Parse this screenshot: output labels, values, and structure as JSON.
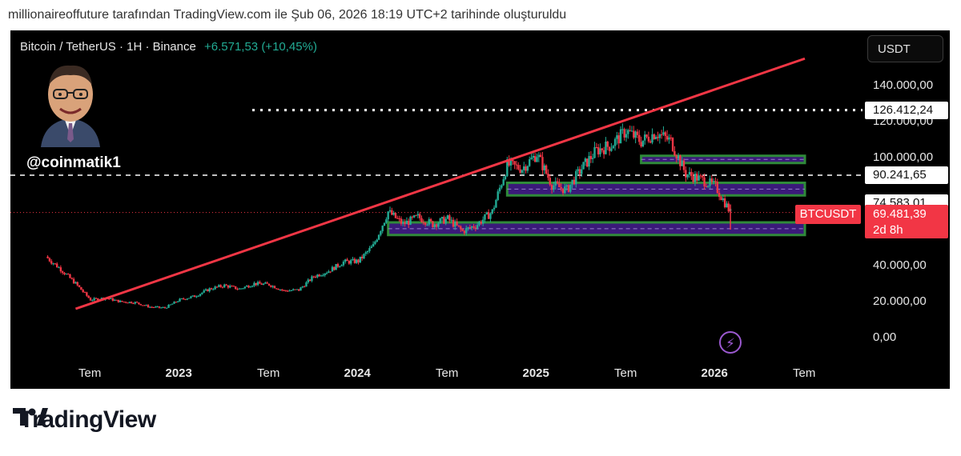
{
  "top_note": "millionaireoffuture tarafından TradingView.com ile Şub 06, 2026 18:19 UTC+2 tarihinde oluşturuldu",
  "header": {
    "symbol": "Bitcoin / TetherUS · 1H · Binance",
    "change": "+6.571,53 (+10,45%)"
  },
  "currency_button": "USDT",
  "handle": "@coinmatik1",
  "brand": {
    "logo_text": "TradingView"
  },
  "colors": {
    "up": "#22ab94",
    "down": "#f23645",
    "trend": "#f23645",
    "zone_fill": "#3a1a7a",
    "zone_border": "#2f8a3a"
  },
  "chart_data": {
    "type": "candlestick",
    "ylim": [
      0,
      160000
    ],
    "y_ticks": [
      {
        "label": "140.000,00",
        "value": 140000
      },
      {
        "label": "120.000,00",
        "value": 120000
      },
      {
        "label": "100.000,00",
        "value": 100000
      },
      {
        "label": "40.000,00",
        "value": 40000
      },
      {
        "label": "20.000,00",
        "value": 20000
      },
      {
        "label": "0,00",
        "value": 0
      }
    ],
    "x_ticks": [
      {
        "label": "Tem",
        "date": "2022-07",
        "year": false
      },
      {
        "label": "2023",
        "date": "2023-01",
        "year": true
      },
      {
        "label": "Tem",
        "date": "2023-07",
        "year": false
      },
      {
        "label": "2024",
        "date": "2024-01",
        "year": true
      },
      {
        "label": "Tem",
        "date": "2024-07",
        "year": false
      },
      {
        "label": "2025",
        "date": "2025-01",
        "year": true
      },
      {
        "label": "Tem",
        "date": "2025-07",
        "year": false
      },
      {
        "label": "2026",
        "date": "2026-01",
        "year": true
      },
      {
        "label": "Tem",
        "date": "2026-07",
        "year": false
      }
    ],
    "price_levels": [
      {
        "label": "126.412,24",
        "value": 126412,
        "style": "dotted"
      },
      {
        "label": "90.241,65",
        "value": 90241,
        "style": "dashed"
      },
      {
        "label": "74.583,01",
        "value": 74583,
        "style": "none"
      }
    ],
    "current_price": {
      "symbol": "BTCUSDT",
      "label": "69.481,39",
      "value": 69481,
      "countdown": "2d 8h"
    },
    "trend_line": {
      "from": {
        "date": "2022-06",
        "value": 16000
      },
      "to": {
        "date": "2026-07",
        "value": 155000
      }
    },
    "zones": [
      {
        "from": "2025-08",
        "to": "2026-07",
        "low": 97000,
        "high": 101000
      },
      {
        "from": "2024-11",
        "to": "2026-07",
        "low": 79000,
        "high": 86000
      },
      {
        "from": "2024-03",
        "to": "2026-07",
        "low": 57000,
        "high": 64000
      }
    ],
    "series": [
      {
        "x": "2022-04",
        "value": 45000
      },
      {
        "x": "2022-05",
        "value": 38000
      },
      {
        "x": "2022-06",
        "value": 30000
      },
      {
        "x": "2022-07",
        "value": 21000
      },
      {
        "x": "2022-08",
        "value": 22000
      },
      {
        "x": "2022-09",
        "value": 20000
      },
      {
        "x": "2022-10",
        "value": 19500
      },
      {
        "x": "2022-11",
        "value": 17000
      },
      {
        "x": "2022-12",
        "value": 16500
      },
      {
        "x": "2023-01",
        "value": 21000
      },
      {
        "x": "2023-02",
        "value": 23000
      },
      {
        "x": "2023-03",
        "value": 27000
      },
      {
        "x": "2023-04",
        "value": 29000
      },
      {
        "x": "2023-05",
        "value": 27000
      },
      {
        "x": "2023-06",
        "value": 30000
      },
      {
        "x": "2023-07",
        "value": 29500
      },
      {
        "x": "2023-08",
        "value": 26000
      },
      {
        "x": "2023-09",
        "value": 26500
      },
      {
        "x": "2023-10",
        "value": 34000
      },
      {
        "x": "2023-11",
        "value": 37000
      },
      {
        "x": "2023-12",
        "value": 42000
      },
      {
        "x": "2024-01",
        "value": 42500
      },
      {
        "x": "2024-02",
        "value": 51000
      },
      {
        "x": "2024-03",
        "value": 70000
      },
      {
        "x": "2024-04",
        "value": 63000
      },
      {
        "x": "2024-05",
        "value": 67000
      },
      {
        "x": "2024-06",
        "value": 63000
      },
      {
        "x": "2024-07",
        "value": 66000
      },
      {
        "x": "2024-08",
        "value": 59000
      },
      {
        "x": "2024-09",
        "value": 63000
      },
      {
        "x": "2024-10",
        "value": 70000
      },
      {
        "x": "2024-11",
        "value": 96000
      },
      {
        "x": "2024-12",
        "value": 94000
      },
      {
        "x": "2025-01",
        "value": 102000
      },
      {
        "x": "2025-02",
        "value": 85000
      },
      {
        "x": "2025-03",
        "value": 82000
      },
      {
        "x": "2025-04",
        "value": 94000
      },
      {
        "x": "2025-05",
        "value": 104000
      },
      {
        "x": "2025-06",
        "value": 107000
      },
      {
        "x": "2025-07",
        "value": 115000
      },
      {
        "x": "2025-08",
        "value": 109000
      },
      {
        "x": "2025-09",
        "value": 114000
      },
      {
        "x": "2025-10",
        "value": 109000
      },
      {
        "x": "2025-11",
        "value": 91000
      },
      {
        "x": "2025-12",
        "value": 88000
      },
      {
        "x": "2026-01",
        "value": 84000
      },
      {
        "x": "2026-02",
        "value": 69500
      }
    ]
  }
}
